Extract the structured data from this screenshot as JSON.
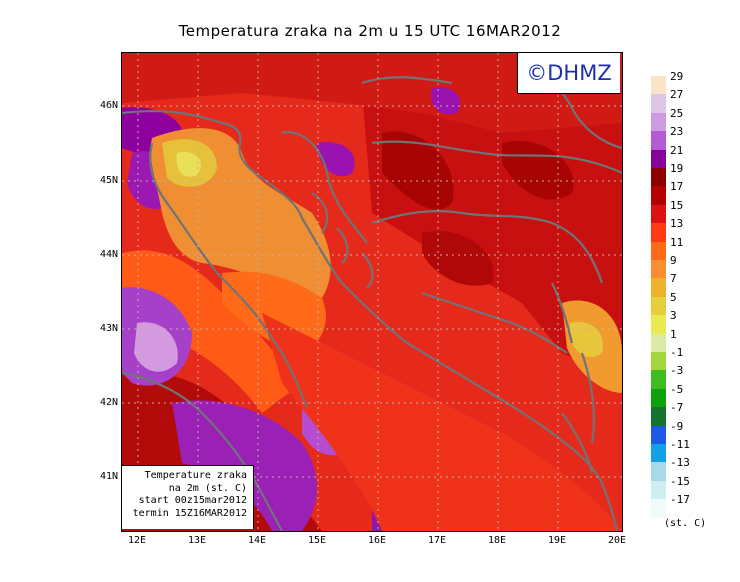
{
  "title": "Temperatura zraka na 2m u 15 UTC 16MAR2012",
  "logo": "©DHMZ",
  "info": {
    "line1": "Temperature zraka",
    "line2": "na 2m (st. C)",
    "line3": "start 00z15mar2012",
    "line4": "termin 15Z16MAR2012"
  },
  "lat_labels": [
    "46N",
    "45N",
    "44N",
    "43N",
    "42N",
    "41N"
  ],
  "lon_labels": [
    "12E",
    "13E",
    "14E",
    "15E",
    "16E",
    "17E",
    "18E",
    "19E",
    "20E"
  ],
  "legend": {
    "unit": "(st. C)",
    "labels": [
      "29",
      "27",
      "25",
      "23",
      "21",
      "19",
      "17",
      "15",
      "13",
      "11",
      "9",
      "7",
      "5",
      "3",
      "1",
      "-1",
      "-3",
      "-5",
      "-7",
      "-9",
      "-11",
      "-13",
      "-15",
      "-17"
    ],
    "colors": [
      "#fbe3c8",
      "#dcc6e6",
      "#cf9be0",
      "#b45ad2",
      "#86009a",
      "#8c0000",
      "#b30000",
      "#dd1111",
      "#ff3b14",
      "#ff6a18",
      "#f98e30",
      "#f0b12a",
      "#e5cf3a",
      "#e9eb50",
      "#dbeaa5",
      "#a4d63e",
      "#3fbd20",
      "#0ea10e",
      "#15742f",
      "#1e58e6",
      "#13a0e6",
      "#a8d9e6",
      "#cfeef2",
      "#f0fbfc"
    ]
  }
}
